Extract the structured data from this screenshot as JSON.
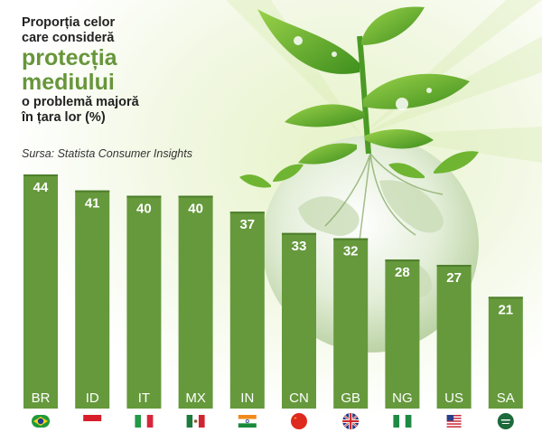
{
  "title": {
    "line1": "Proporția celor",
    "line2": "care consideră",
    "line3": "protecția",
    "line4": "mediului",
    "line5": "o problemă majoră",
    "line6": "în țara lor (%)"
  },
  "source": "Sursa: Statista Consumer Insights",
  "colors": {
    "bar": "#65993c",
    "bar_edge": "#4e7d2b",
    "value_text": "#ffffff",
    "title_accent": "#67963a"
  },
  "chart_data": {
    "type": "bar",
    "categories": [
      "BR",
      "ID",
      "IT",
      "MX",
      "IN",
      "CN",
      "GB",
      "NG",
      "US",
      "SA"
    ],
    "values": [
      44,
      41,
      40,
      40,
      37,
      33,
      32,
      28,
      27,
      21
    ],
    "flags": [
      "brazil-flag-icon",
      "indonesia-flag-icon",
      "italy-flag-icon",
      "mexico-flag-icon",
      "india-flag-icon",
      "china-flag-icon",
      "uk-flag-icon",
      "nigeria-flag-icon",
      "usa-flag-icon",
      "saudi-flag-icon"
    ],
    "title": "Proporția celor care consideră protecția mediului o problemă majoră în țara lor (%)",
    "xlabel": "",
    "ylabel": "",
    "ylim": [
      0,
      44
    ],
    "grid": false,
    "legend": "none"
  }
}
